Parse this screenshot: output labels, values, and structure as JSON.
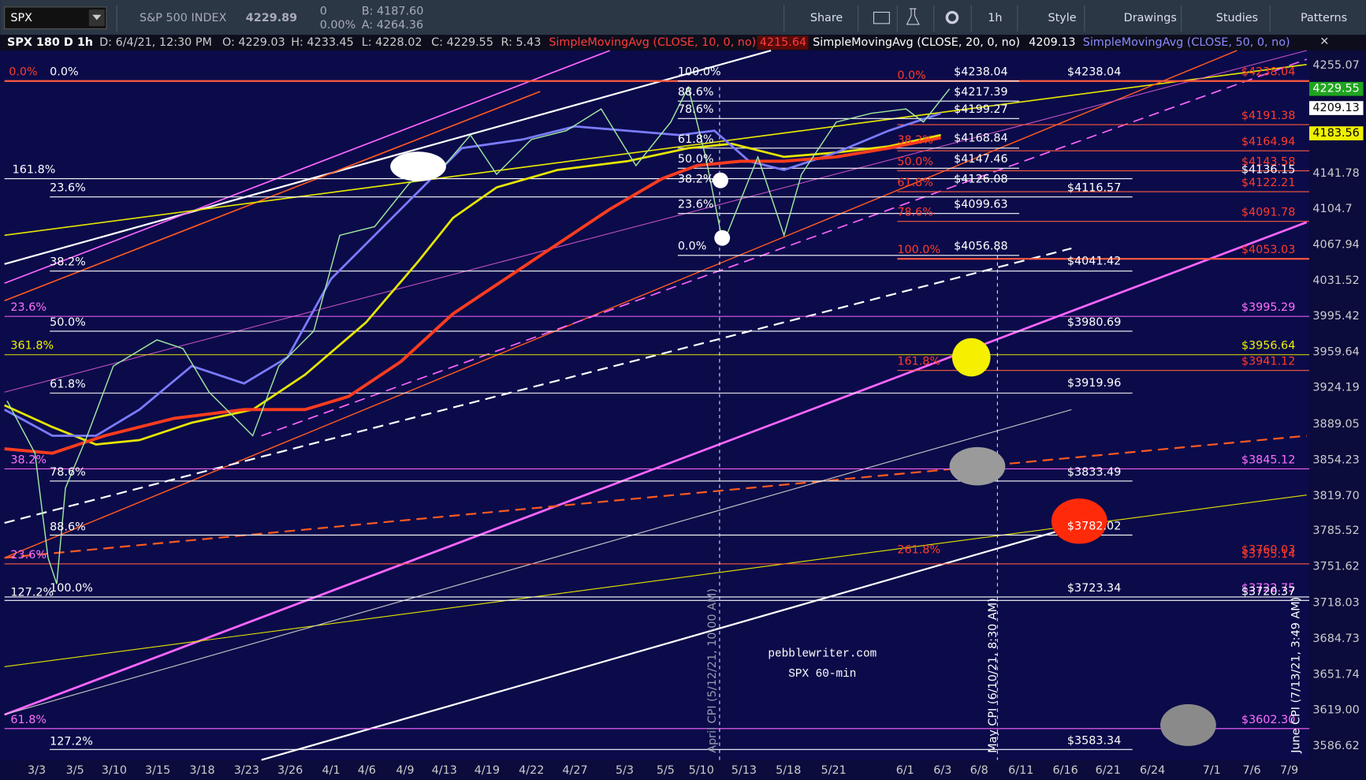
{
  "toolbar": {
    "symbol": "SPX",
    "name": "S&P 500 INDEX",
    "price": "4229.89",
    "change": "0",
    "change_pct": "0.00%",
    "bid": "B: 4187.60",
    "ask": "A: 4264.36",
    "buttons": [
      "Share",
      "1h",
      "Style",
      "Drawings",
      "Studies",
      "Patterns"
    ]
  },
  "info_bar": {
    "title": "SPX 180 D 1h",
    "date": "D: 6/4/21, 12:30 PM",
    "open": "O: 4229.03",
    "high": "H: 4233.45",
    "low": "L: 4228.02",
    "close": "C: 4229.55",
    "range": "R: 5.43",
    "studies": [
      {
        "label": "SimpleMovingAvg (CLOSE, 10, 0, no)",
        "value": "4215.64"
      },
      {
        "label": "SimpleMovingAvg (CLOSE, 20, 0, no)",
        "value": "4209.13"
      },
      {
        "label": "SimpleMovingAvg (CLOSE, 50, 0, no)"
      }
    ]
  },
  "price_axis": [
    "4255.07",
    "4141.78",
    "4104.7",
    "4067.94",
    "4031.52",
    "3995.42",
    "3959.64",
    "3924.19",
    "3889.05",
    "3854.23",
    "3819.70",
    "3785.52",
    "3751.62",
    "3718.03",
    "3684.73",
    "3651.74",
    "3619.00",
    "3586.62"
  ],
  "price_badges": [
    "4229.55",
    "4209.13",
    "4183.56"
  ],
  "date_axis": [
    "3/3",
    "3/5",
    "3/10",
    "3/15",
    "3/18",
    "3/23",
    "3/26",
    "4/1",
    "4/6",
    "4/9",
    "4/13",
    "4/19",
    "4/22",
    "4/27",
    "5/3",
    "5/5",
    "5/10",
    "5/13",
    "5/18",
    "5/21",
    "6/1",
    "6/3",
    "6/8",
    "6/11",
    "6/16",
    "6/21",
    "6/24",
    "7/1",
    "7/6",
    "7/9"
  ],
  "annotations": [
    "0.0%",
    "0.0%",
    "161.8%",
    "23.6%",
    "38.2%",
    "23.6%",
    "50.0%",
    "361.8%",
    "61.8%",
    "38.2%",
    "78.6%",
    "88.6%",
    "23.6%",
    "100.0%",
    "127.2%",
    "61.8%",
    "127.2%",
    "100.0%",
    "88.6%",
    "78.6%",
    "61.8%",
    "50.0%",
    "38.2%",
    "23.6%",
    "0.0%",
    "$4238.04",
    "$4217.39",
    "$4199.27",
    "$4168.84",
    "$4147.46",
    "$4126.08",
    "$4099.63",
    "$4056.88",
    "0.0%",
    "38.2%",
    "50.0%",
    "61.8%",
    "78.6%",
    "100.0%",
    "161.8%",
    "261.8%",
    "$4238.04",
    "$4116.57",
    "$4041.42",
    "$3980.69",
    "$3919.96",
    "$3833.49",
    "$3782.02",
    "$3723.34",
    "$3583.34",
    "$4238.04",
    "$4191.38",
    "$4164.94",
    "$4143.58",
    "$4136.15",
    "$4122.21",
    "$4091.78",
    "$4053.03",
    "$3995.29",
    "$3956.64",
    "$3941.12",
    "$3845.12",
    "$3760.03",
    "$3755.14",
    "$3722.75",
    "$3720.37",
    "$3602.30"
  ],
  "watermark": [
    "pebblewriter.com",
    "SPX 60-min"
  ],
  "event_labels": [
    "April CPI (5/12/21, 10:00 AM)",
    "May CPI (6/10/21, 8:30 AM)",
    "June CPI (7/13/21, 3:49 AM)"
  ]
}
